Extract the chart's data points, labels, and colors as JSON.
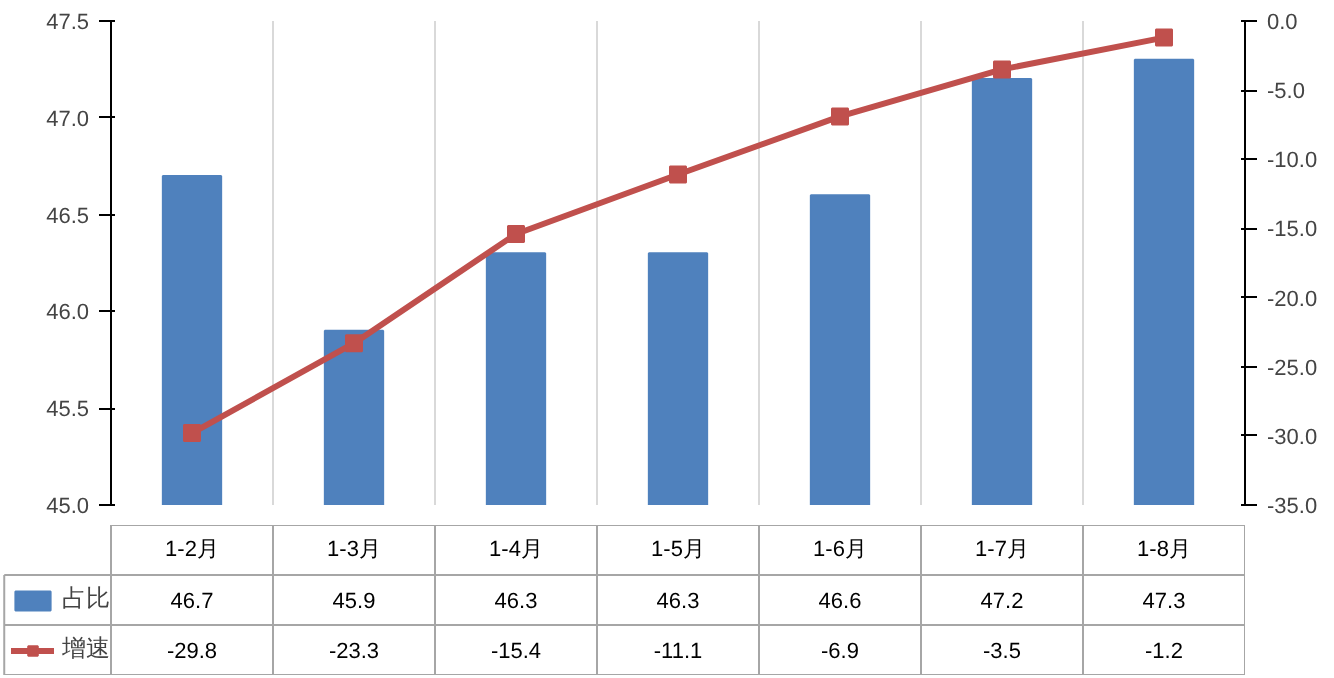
{
  "chart_data": {
    "type": "bar",
    "categories": [
      "1-2月",
      "1-3月",
      "1-4月",
      "1-5月",
      "1-6月",
      "1-7月",
      "1-8月"
    ],
    "series": [
      {
        "name": "占比",
        "color": "#4f81bd",
        "values": [
          46.7,
          45.9,
          46.3,
          46.3,
          46.6,
          47.2,
          47.3
        ]
      },
      {
        "name": "增速",
        "type": "line",
        "axis": "y2",
        "color": "#c0504d",
        "values": [
          -29.8,
          -23.3,
          -15.4,
          -11.1,
          -6.9,
          -3.5,
          -1.2
        ]
      }
    ],
    "ylim": [
      45,
      47.5
    ],
    "yticks": [
      {
        "value": 45,
        "label": "45.0"
      },
      {
        "value": 45.5,
        "label": "45.5"
      },
      {
        "value": 46,
        "label": "46.0"
      },
      {
        "value": 46.5,
        "label": "46.5"
      },
      {
        "value": 47,
        "label": "47.0"
      },
      {
        "value": 47.5,
        "label": "47.5"
      }
    ],
    "y2lim": [
      -35,
      0
    ],
    "y2ticks": [
      {
        "value": -35,
        "label": "-35.0"
      },
      {
        "value": -30,
        "label": "-30.0"
      },
      {
        "value": -25,
        "label": "-25.0"
      },
      {
        "value": -20,
        "label": "-20.0"
      },
      {
        "value": -15,
        "label": "-15.0"
      },
      {
        "value": -10,
        "label": "-10.0"
      },
      {
        "value": -5,
        "label": "-5.0"
      },
      {
        "value": 0,
        "label": "0.0"
      }
    ],
    "grid": "x",
    "legend": "bottom",
    "data_labels": true,
    "marker": "square",
    "line_style": "solid"
  }
}
